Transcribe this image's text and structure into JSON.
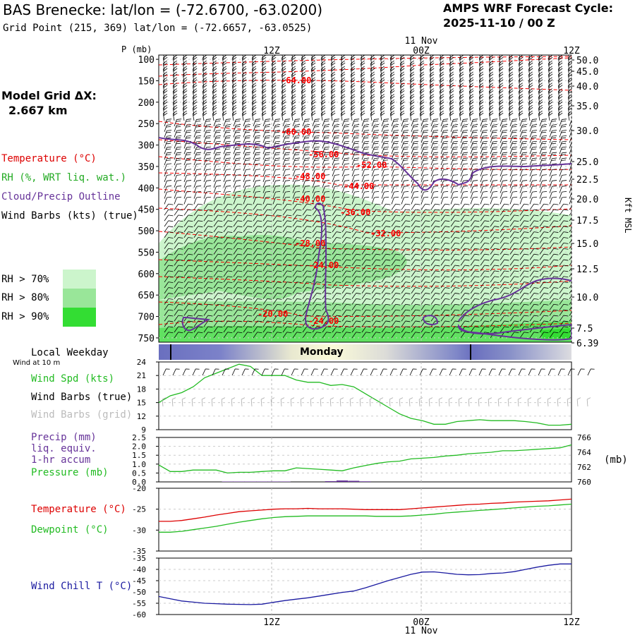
{
  "header": {
    "title": "BAS Brenecke:  lat/lon = (-72.6700, -63.0200)",
    "grid_point": "Grid Point (215, 369) lat/lon = (-72.6657, -63.0525)",
    "cycle_label": "AMPS WRF Forecast Cycle:",
    "cycle_value": "2025-11-10 / 00  Z",
    "model_grid_label": "Model Grid ΔX:",
    "model_grid_value": "2.667 km"
  },
  "legend": {
    "temperature": "Temperature (°C)",
    "rh": "RH (%, WRT liq. wat.)",
    "cloud": "Cloud/Precip Outline",
    "wind_barbs": "Wind Barbs (kts) (true)",
    "rh70": "RH > 70%",
    "rh80": "RH > 80%",
    "rh90": "RH > 90%"
  },
  "colors": {
    "temperature": "#ff0000",
    "rh": "#22aa22",
    "cloud": "#663399",
    "rh70": "#ccf5cc",
    "rh80": "#99e699",
    "rh90": "#33dd33",
    "wind_chill": "#1a1aa0",
    "precip": "#663399"
  },
  "time_axis": {
    "top_date": "11 Nov",
    "bottom_date": "11 Nov",
    "ticks": [
      "12Z",
      "00Z",
      "12Z"
    ]
  },
  "chart_data": [
    {
      "type": "heatmap",
      "title": "Time-height cross section",
      "ylabel": "P (mb)",
      "y2label": "Kft MSL",
      "pressure_ticks": [
        "100",
        "150",
        "200",
        "250",
        "300",
        "350",
        "400",
        "450",
        "500",
        "550",
        "600",
        "650",
        "700",
        "750"
      ],
      "height_ticks": [
        "50.0",
        "45.0",
        "40.0",
        "35.0",
        "30.0",
        "25.0",
        "22.5",
        "20.0",
        "17.5",
        "15.0",
        "12.5",
        "10.0",
        "7.5",
        "6.39"
      ],
      "x_ticks": [
        "12Z",
        "00Z",
        "12Z"
      ],
      "temperature_contour_labels": [
        "-64.00",
        "-60.00",
        "-56.00",
        "-52.00",
        "-48.00",
        "-44.00",
        "-40.00",
        "-36.00",
        "-32.00",
        "-28.00",
        "-24.00",
        "-24.00",
        "-20.00"
      ]
    },
    {
      "type": "line",
      "title": "Local Weekday",
      "wind_note": "Wind at 10 m",
      "weekday_label": "Monday",
      "labels": {
        "wind_spd": "Wind Spd (kts)",
        "barbs_true": "Wind Barbs (true)",
        "barbs_grid": "Wind Barbs (grid)"
      },
      "y_ticks": [
        "24",
        "21",
        "18",
        "15",
        "12",
        "9"
      ],
      "ylim": [
        9,
        24
      ],
      "series": [
        {
          "name": "Wind Spd (kts)",
          "color": "#22bb22",
          "values": [
            15,
            16.5,
            17.2,
            18.5,
            20.5,
            21.5,
            22.5,
            23.5,
            23,
            21,
            21,
            21,
            20,
            19.5,
            19.5,
            18.8,
            19,
            18.5,
            17,
            15.5,
            14,
            12.5,
            11.5,
            11,
            10.2,
            10.2,
            10.8,
            11,
            11.2,
            11,
            11,
            11,
            10.8,
            10.5,
            10,
            10,
            10.2
          ]
        }
      ]
    },
    {
      "type": "line",
      "labels": {
        "precip": "Precip (mm)",
        "precip2": "liq. equiv.",
        "precip3": "1-hr accum",
        "pressure": "Pressure (mb)",
        "right_unit": "(mb)"
      },
      "y_ticks": [
        "2.5",
        "2.0",
        "1.5",
        "1.0",
        "0.5",
        "0.0"
      ],
      "y2_ticks": [
        "766",
        "764",
        "762",
        "760"
      ],
      "ylim": [
        0,
        2.5
      ],
      "y2lim": [
        760,
        766
      ],
      "series": [
        {
          "name": "Pressure (mb)",
          "color": "#22bb22",
          "values": [
            762.3,
            761.4,
            761.4,
            761.6,
            761.6,
            761.6,
            761.2,
            761.3,
            761.3,
            761.4,
            761.5,
            761.5,
            761.9,
            761.8,
            761.7,
            761.6,
            761.5,
            761.9,
            762.2,
            762.5,
            762.7,
            762.8,
            763.1,
            763.2,
            763.3,
            763.5,
            763.6,
            763.8,
            763.9,
            764.0,
            764.2,
            764.2,
            764.3,
            764.4,
            764.5,
            764.6,
            765.0
          ]
        },
        {
          "name": "Precip (mm)",
          "color": "#663399",
          "values": [
            0,
            0,
            0,
            0,
            0,
            0,
            0.02,
            0.02,
            0.02,
            0.02,
            0.02,
            0.02,
            0,
            0,
            0,
            0.04,
            0.08,
            0.06,
            0.03,
            0,
            0,
            0,
            0,
            0,
            0,
            0,
            0,
            0,
            0,
            0,
            0,
            0,
            0,
            0,
            0,
            0,
            0
          ]
        }
      ]
    },
    {
      "type": "line",
      "labels": {
        "temperature": "Temperature (°C)",
        "dewpoint": "Dewpoint (°C)"
      },
      "y_ticks": [
        "-20",
        "-25",
        "-30",
        "-35"
      ],
      "ylim": [
        -35,
        -20
      ],
      "series": [
        {
          "name": "Temperature (°C)",
          "color": "#dd0000",
          "values": [
            -27.9,
            -27.9,
            -27.7,
            -27.3,
            -26.9,
            -26.4,
            -26.0,
            -25.6,
            -25.4,
            -25.2,
            -25.0,
            -24.9,
            -24.9,
            -24.8,
            -24.9,
            -24.9,
            -24.9,
            -25.0,
            -25.1,
            -25.1,
            -25.1,
            -25.1,
            -24.9,
            -24.7,
            -24.5,
            -24.3,
            -24.1,
            -23.9,
            -23.8,
            -23.6,
            -23.5,
            -23.3,
            -23.2,
            -23.1,
            -23.0,
            -22.8,
            -22.6
          ]
        },
        {
          "name": "Dewpoint (°C)",
          "color": "#22bb22",
          "values": [
            -30.5,
            -30.5,
            -30.3,
            -29.9,
            -29.5,
            -29.1,
            -28.6,
            -28.1,
            -27.7,
            -27.3,
            -27.0,
            -26.8,
            -26.7,
            -26.6,
            -26.6,
            -26.6,
            -26.6,
            -26.6,
            -26.6,
            -26.7,
            -26.7,
            -26.7,
            -26.6,
            -26.4,
            -26.2,
            -25.9,
            -25.7,
            -25.5,
            -25.3,
            -25.1,
            -24.9,
            -24.7,
            -24.5,
            -24.3,
            -24.2,
            -24.0,
            -23.8
          ]
        }
      ]
    },
    {
      "type": "line",
      "labels": {
        "wind_chill": "Wind Chill T (°C)"
      },
      "y_ticks": [
        "-35",
        "-40",
        "-45",
        "-50",
        "-55",
        "-60"
      ],
      "ylim": [
        -60,
        -35
      ],
      "series": [
        {
          "name": "Wind Chill T (°C)",
          "color": "#1a1aa0",
          "values": [
            -52,
            -53,
            -54,
            -54.5,
            -55,
            -55.2,
            -55.4,
            -55.5,
            -55.6,
            -55.4,
            -54.6,
            -53.8,
            -53.2,
            -52.6,
            -51.8,
            -51,
            -50.2,
            -49.6,
            -48.2,
            -46.6,
            -45,
            -43.6,
            -42.2,
            -41.2,
            -41.1,
            -41.6,
            -42.2,
            -42.4,
            -42.3,
            -41.8,
            -41.6,
            -41.0,
            -40.0,
            -39,
            -38.2,
            -37.6,
            -37.6
          ]
        }
      ]
    }
  ]
}
